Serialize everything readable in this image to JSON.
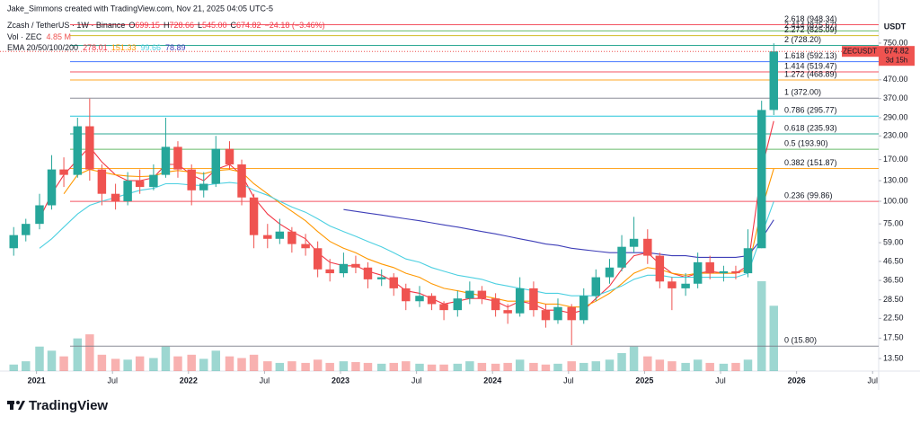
{
  "chart_data": {
    "type": "candlestick",
    "header": "Jake_Simmons created with TradingView.com, Nov 21, 2025 04:05 UTC-5",
    "ohlc_legend": {
      "symbol": "Zcash / TetherUS · 1W · Binance",
      "fields": [
        {
          "key": "O",
          "value": "699.15"
        },
        {
          "key": "H",
          "value": "728.66"
        },
        {
          "key": "L",
          "value": "545.00"
        },
        {
          "key": "C",
          "value": "674.82"
        }
      ],
      "change": "−24.18 (−3.46%)",
      "color": "#f23645"
    },
    "currency": "USDT",
    "symbol_tag": "ZECUSDT",
    "countdown": "3d 15h",
    "footer": "TradingView",
    "log_scale": true,
    "up_color": "#26a69a",
    "down_color": "#ef5350",
    "xlim": [
      2020.76,
      2026.54
    ],
    "xticks": [
      {
        "value": 2021,
        "label": "2021"
      },
      {
        "value": 2021.5,
        "label": "Jul"
      },
      {
        "value": 2022,
        "label": "2022"
      },
      {
        "value": 2022.5,
        "label": "Jul"
      },
      {
        "value": 2023,
        "label": "2023"
      },
      {
        "value": 2023.5,
        "label": "Jul"
      },
      {
        "value": 2024,
        "label": "2024"
      },
      {
        "value": 2024.5,
        "label": "Jul"
      },
      {
        "value": 2025,
        "label": "2025"
      },
      {
        "value": 2025.5,
        "label": "Jul"
      },
      {
        "value": 2026,
        "label": "2026"
      },
      {
        "value": 2026.5,
        "label": "Jul"
      }
    ],
    "ylim": [
      11.5,
      1185
    ],
    "yticks": [
      {
        "value": 750,
        "label": "750.00"
      },
      {
        "value": 470,
        "label": "470.00"
      },
      {
        "value": 370,
        "label": "370.00"
      },
      {
        "value": 290,
        "label": "290.00"
      },
      {
        "value": 230,
        "label": "230.00"
      },
      {
        "value": 170,
        "label": "170.00"
      },
      {
        "value": 130,
        "label": "130.00"
      },
      {
        "value": 100,
        "label": "100.00"
      },
      {
        "value": 75,
        "label": "75.00"
      },
      {
        "value": 59,
        "label": "59.00"
      },
      {
        "value": 46.5,
        "label": "46.50"
      },
      {
        "value": 36.5,
        "label": "36.50"
      },
      {
        "value": 28.5,
        "label": "28.50"
      },
      {
        "value": 22.5,
        "label": "22.50"
      },
      {
        "value": 17.5,
        "label": "17.50"
      },
      {
        "value": 13.5,
        "label": "13.50"
      }
    ],
    "candles": {
      "x": [
        2020.85,
        2020.93,
        2021.02,
        2021.1,
        2021.18,
        2021.27,
        2021.35,
        2021.43,
        2021.52,
        2021.6,
        2021.68,
        2021.77,
        2021.85,
        2021.93,
        2022.02,
        2022.1,
        2022.18,
        2022.27,
        2022.35,
        2022.43,
        2022.52,
        2022.6,
        2022.68,
        2022.77,
        2022.85,
        2022.93,
        2023.02,
        2023.1,
        2023.18,
        2023.27,
        2023.35,
        2023.43,
        2023.52,
        2023.6,
        2023.68,
        2023.77,
        2023.85,
        2023.93,
        2024.02,
        2024.1,
        2024.18,
        2024.27,
        2024.35,
        2024.43,
        2024.52,
        2024.6,
        2024.68,
        2024.77,
        2024.85,
        2024.93,
        2025.02,
        2025.1,
        2025.18,
        2025.27,
        2025.35,
        2025.43,
        2025.52,
        2025.6,
        2025.68,
        2025.77,
        2025.85
      ],
      "open": [
        55,
        65,
        75,
        95,
        150,
        140,
        260,
        150,
        110,
        100,
        130,
        120,
        140,
        200,
        150,
        115,
        125,
        195,
        160,
        105,
        65,
        62,
        68,
        58,
        55,
        42,
        40,
        45,
        43,
        37,
        38,
        33,
        28,
        30,
        27,
        25,
        29,
        32,
        29,
        25,
        24,
        33,
        25,
        22,
        26,
        22,
        30,
        38,
        43,
        56,
        62,
        50,
        36,
        33,
        35,
        46,
        40,
        41,
        40,
        55,
        320
      ],
      "high": [
        72,
        80,
        110,
        180,
        175,
        290,
        370,
        160,
        125,
        145,
        150,
        160,
        290,
        215,
        160,
        145,
        230,
        215,
        170,
        110,
        75,
        80,
        72,
        66,
        60,
        48,
        52,
        50,
        46,
        42,
        40,
        35,
        34,
        31,
        28,
        32,
        36,
        34,
        31,
        27,
        38,
        36,
        27,
        29,
        27,
        33,
        42,
        48,
        65,
        82,
        70,
        52,
        38,
        40,
        52,
        50,
        44,
        44,
        70,
        360,
        748
      ],
      "low": [
        50,
        60,
        70,
        90,
        120,
        135,
        130,
        95,
        90,
        95,
        110,
        115,
        135,
        135,
        95,
        105,
        120,
        150,
        95,
        55,
        55,
        58,
        52,
        50,
        38,
        36,
        38,
        40,
        33,
        34,
        30,
        25,
        26,
        25,
        22,
        23,
        27,
        27,
        23,
        21,
        23,
        23,
        20,
        21,
        16,
        21,
        28,
        35,
        41,
        52,
        45,
        33,
        25,
        30,
        33,
        37,
        36,
        37,
        38,
        55,
        300
      ],
      "close": [
        65,
        75,
        95,
        150,
        140,
        260,
        150,
        110,
        100,
        130,
        120,
        140,
        200,
        150,
        115,
        125,
        195,
        160,
        105,
        65,
        62,
        68,
        58,
        55,
        42,
        40,
        45,
        43,
        37,
        38,
        33,
        28,
        30,
        27,
        25,
        29,
        32,
        29,
        25,
        24,
        33,
        25,
        22,
        26,
        22,
        30,
        38,
        43,
        56,
        62,
        50,
        36,
        33,
        35,
        46,
        40,
        41,
        40,
        55,
        320,
        674.82
      ]
    },
    "volume": {
      "label": "Vol · ZEC",
      "last": "4.85 M",
      "values": [
        8,
        12,
        30,
        25,
        18,
        40,
        45,
        20,
        15,
        14,
        18,
        16,
        30,
        18,
        20,
        15,
        25,
        18,
        16,
        20,
        12,
        10,
        12,
        10,
        14,
        10,
        12,
        11,
        10,
        9,
        10,
        12,
        9,
        8,
        8,
        9,
        12,
        10,
        9,
        10,
        14,
        10,
        8,
        9,
        12,
        10,
        12,
        14,
        22,
        30,
        18,
        14,
        12,
        10,
        14,
        10,
        9,
        10,
        14,
        110,
        80
      ]
    },
    "ema": {
      "label": "EMA 20/50/100/200",
      "series": [
        {
          "color": "#f23645",
          "values": [
            null,
            null,
            80,
            110,
            140,
            170,
            200,
            165,
            140,
            130,
            130,
            135,
            160,
            160,
            140,
            130,
            150,
            160,
            140,
            105,
            85,
            75,
            68,
            62,
            52,
            46,
            44,
            44,
            41,
            39,
            36,
            32,
            31,
            29,
            27,
            28,
            29,
            29,
            28,
            26,
            28,
            27,
            25,
            25,
            24,
            25,
            29,
            34,
            42,
            50,
            52,
            45,
            40,
            38,
            40,
            41,
            40,
            40,
            44,
            150,
            278.01
          ]
        },
        {
          "color": "#ff9800",
          "values": [
            null,
            null,
            null,
            null,
            110,
            140,
            150,
            145,
            140,
            138,
            137,
            138,
            145,
            148,
            145,
            142,
            148,
            150,
            145,
            125,
            110,
            98,
            88,
            78,
            68,
            60,
            55,
            52,
            48,
            45,
            43,
            40,
            38,
            35,
            33,
            32,
            31,
            30,
            29,
            28,
            28,
            28,
            27,
            27,
            26,
            26,
            28,
            31,
            35,
            40,
            43,
            42,
            40,
            39,
            40,
            40,
            40,
            40,
            42,
            90,
            151.33
          ]
        },
        {
          "color": "#4dd0e1",
          "values": [
            null,
            null,
            55,
            62,
            72,
            85,
            95,
            100,
            105,
            110,
            115,
            118,
            125,
            125,
            123,
            122,
            125,
            127,
            125,
            115,
            108,
            100,
            93,
            87,
            80,
            73,
            68,
            64,
            60,
            56,
            52,
            48,
            46,
            43,
            41,
            39,
            38,
            37,
            35,
            34,
            33,
            32,
            31,
            31,
            30,
            30,
            30,
            32,
            34,
            37,
            39,
            39,
            38,
            38,
            38,
            38,
            38,
            38,
            40,
            65,
            99.66
          ]
        },
        {
          "color": "#3f3fb8",
          "values": [
            null,
            null,
            null,
            null,
            null,
            null,
            null,
            null,
            null,
            null,
            null,
            null,
            null,
            null,
            null,
            null,
            null,
            null,
            null,
            null,
            null,
            null,
            null,
            null,
            null,
            null,
            90,
            88,
            86,
            84,
            82,
            80,
            78,
            76,
            74,
            72,
            70,
            68,
            66,
            64,
            62,
            60,
            58,
            57,
            55,
            54,
            53,
            52,
            52,
            52,
            52,
            51,
            50,
            50,
            49,
            49,
            49,
            49,
            50,
            62,
            78.89
          ]
        }
      ]
    },
    "fib_levels": [
      {
        "value": 948.34,
        "label": "2.618 (948.34)",
        "color": "#f23645"
      },
      {
        "value": 875.67,
        "label": "2.414 (875.67)",
        "color": "#4caf50"
      },
      {
        "value": 825.09,
        "label": "2.272 (825.09)",
        "color": "#c9b100"
      },
      {
        "value": 728.2,
        "label": "2 (728.20)",
        "color": "#089981"
      },
      {
        "value": 592.13,
        "label": "1.618 (592.13)",
        "color": "#2962ff"
      },
      {
        "value": 519.47,
        "label": "1.414 (519.47)",
        "color": "#f23645"
      },
      {
        "value": 468.89,
        "label": "1.272 (468.89)",
        "color": "#ff9800"
      },
      {
        "value": 372.0,
        "label": "1 (372.00)",
        "color": "#787b86"
      },
      {
        "value": 295.77,
        "label": "0.786 (295.77)",
        "color": "#00bcd4"
      },
      {
        "value": 235.93,
        "label": "0.618 (235.93)",
        "color": "#089981"
      },
      {
        "value": 193.9,
        "label": "0.5 (193.90)",
        "color": "#4caf50"
      },
      {
        "value": 151.87,
        "label": "0.382 (151.87)",
        "color": "#ff9800"
      },
      {
        "value": 99.86,
        "label": "0.236 (99.86)",
        "color": "#f23645"
      },
      {
        "value": 15.8,
        "label": "0 (15.80)",
        "color": "#787b86"
      }
    ]
  }
}
